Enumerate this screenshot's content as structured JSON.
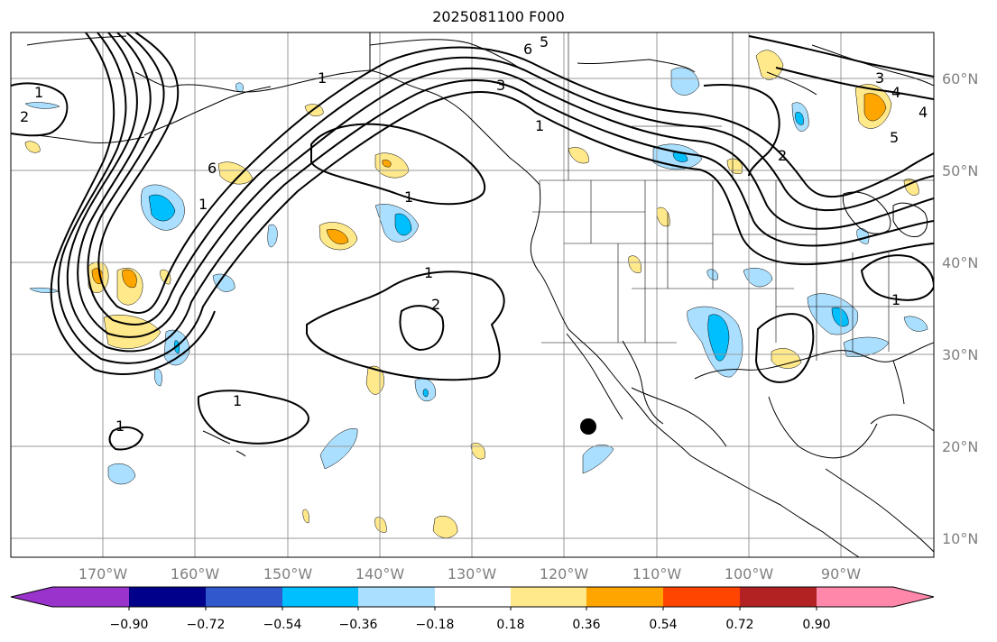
{
  "title": "2025081100 F000",
  "latitude_labels": [
    "60°N",
    "50°N",
    "40°N",
    "30°N",
    "20°N",
    "10°N"
  ],
  "longitude_labels": [
    "170°W",
    "160°W",
    "150°W",
    "140°W",
    "130°W",
    "120°W",
    "110°W",
    "100°W",
    "90°W"
  ],
  "colorbar": {
    "ticks": [
      "−0.90",
      "−0.72",
      "−0.54",
      "−0.36",
      "−0.18",
      "0.18",
      "0.36",
      "0.54",
      "0.72",
      "0.90"
    ],
    "colors": [
      "#9933cc",
      "#00008b",
      "#3158cc",
      "#00bfff",
      "#aadfff",
      "#ffffff",
      "#ffe98a",
      "#ffa500",
      "#ff4500",
      "#b22222",
      "#ff88aa"
    ]
  },
  "contour_labels": [
    "1",
    "2",
    "6",
    "5",
    "4",
    "3",
    "2",
    "1",
    "1",
    "2",
    "1",
    "1",
    "6",
    "5",
    "4",
    "3",
    "1",
    "1",
    "1",
    "1"
  ],
  "colors": {
    "contour": "#000000",
    "grid": "#999999",
    "coast": "#000000",
    "pos_light": "#ffe98a",
    "pos_mid": "#ffa500",
    "neg_light": "#aadfff",
    "neg_mid": "#00bfff"
  },
  "marker": "filled-circle"
}
